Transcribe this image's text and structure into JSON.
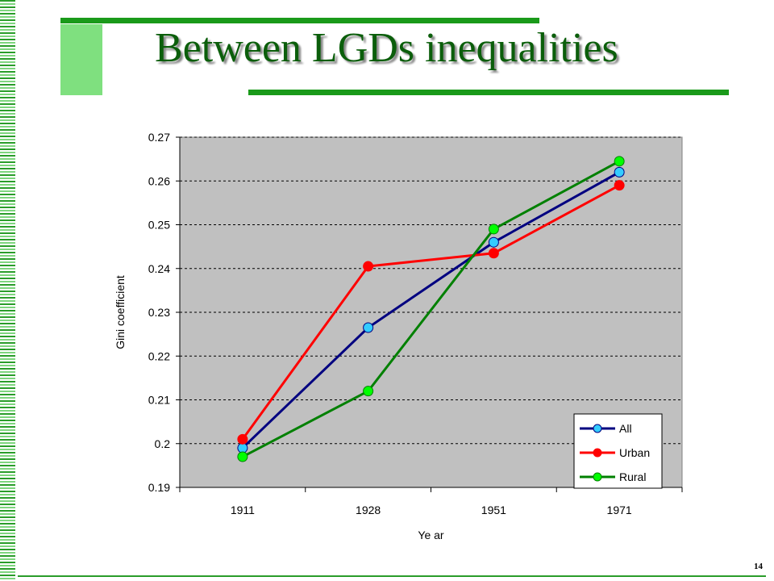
{
  "slide": {
    "title": "Between LGDs inequalities",
    "page_number": "14"
  },
  "colors": {
    "title": "#0b5e0b",
    "decor_green": "#1a9a1a",
    "decor_light": "#7fe07f",
    "plot_bg": "#c0c0c0"
  },
  "chart_data": {
    "type": "line",
    "categories": [
      "1911",
      "1928",
      "1951",
      "1971"
    ],
    "xlabel": "Ye ar",
    "ylabel": "Gini coefficient",
    "ylim": [
      0.19,
      0.27
    ],
    "yticks": [
      "0.19",
      "0.2",
      "0.21",
      "0.22",
      "0.23",
      "0.24",
      "0.25",
      "0.26",
      "0.27"
    ],
    "grid": "horizontal dashed",
    "legend_position": "bottom-right",
    "series": [
      {
        "name": "All",
        "values": [
          0.199,
          0.2265,
          0.246,
          0.262
        ],
        "line_color": "#000080",
        "marker_color": "#33ccff"
      },
      {
        "name": "Urban",
        "values": [
          0.201,
          0.2405,
          0.2435,
          0.259
        ],
        "line_color": "#ff0000",
        "marker_color": "#ff0000"
      },
      {
        "name": "Rural",
        "values": [
          0.197,
          0.212,
          0.249,
          0.2645
        ],
        "line_color": "#008000",
        "marker_color": "#00ff00"
      }
    ]
  }
}
